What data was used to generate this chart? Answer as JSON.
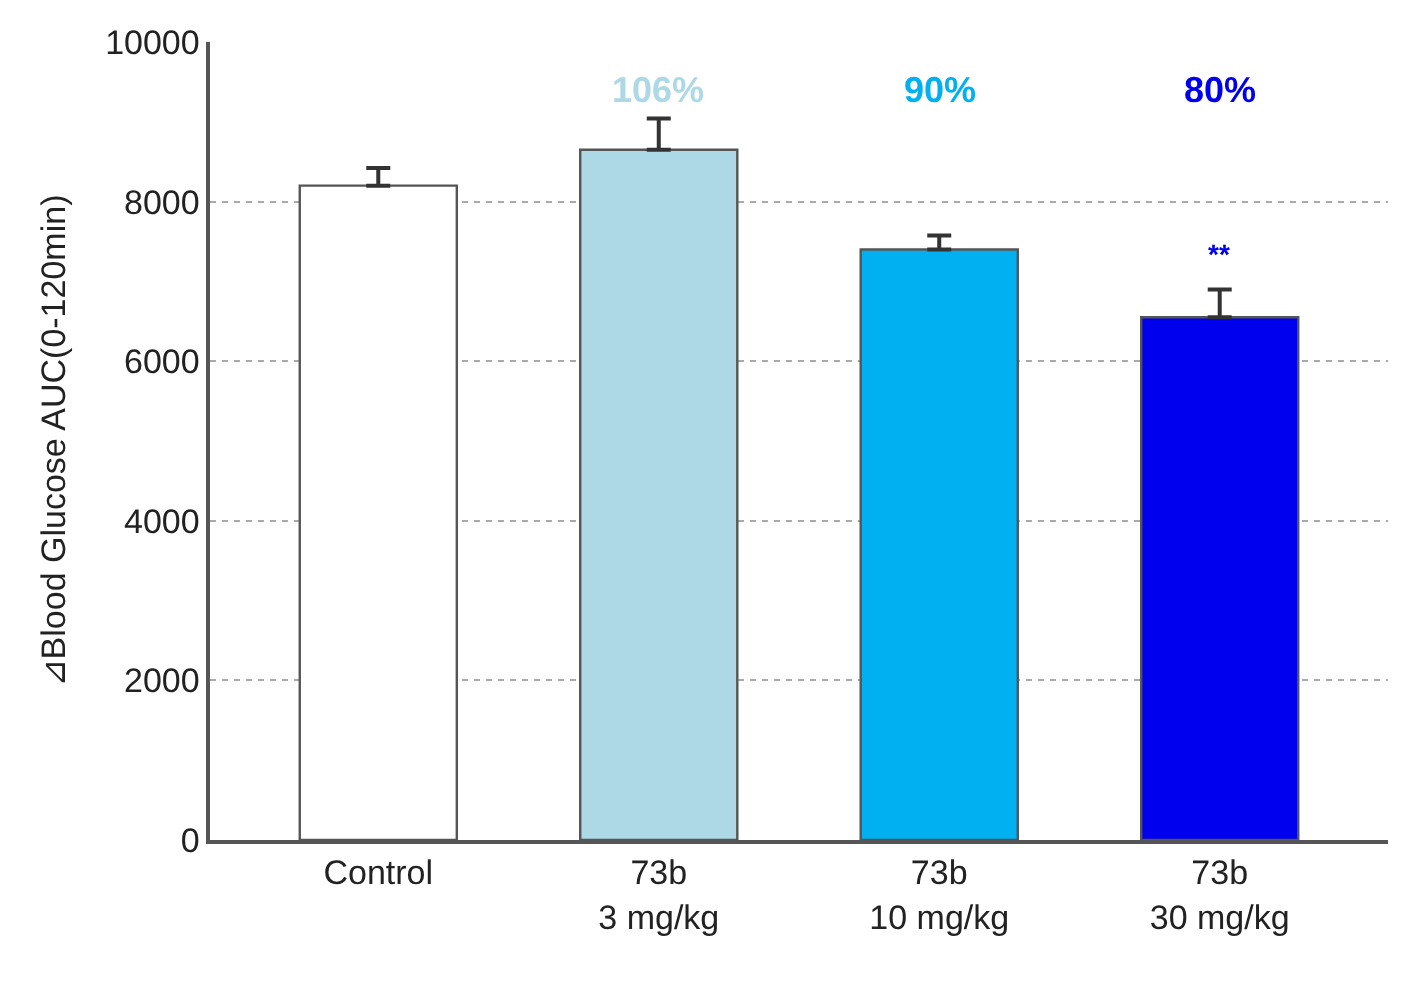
{
  "chart_data": {
    "type": "bar",
    "ylabel": "⊿Blood Glucose AUC(0-120min)",
    "categories": [
      "Control",
      "73b\n3 mg/kg",
      "73b\n10 mg/kg",
      "73b\n30 mg/kg"
    ],
    "values": [
      8200,
      8650,
      7400,
      6550
    ],
    "errors": [
      220,
      390,
      175,
      350
    ],
    "colors": [
      "#ffffff",
      "#add8e6",
      "#00b0f0",
      "#0000ee"
    ],
    "ylim": [
      0,
      10000
    ],
    "yticks": [
      0,
      2000,
      4000,
      6000,
      8000,
      10000
    ],
    "grid": "y",
    "annotations": [
      "106%",
      "90%",
      "80%",
      "**"
    ]
  }
}
